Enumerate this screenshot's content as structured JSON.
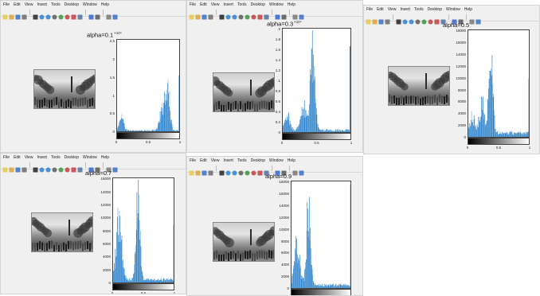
{
  "menu": [
    "File",
    "Edit",
    "View",
    "Insert",
    "Tools",
    "Desktop",
    "Window",
    "Help"
  ],
  "toolbar_icons": [
    "new-file-icon",
    "open-folder-icon",
    "save-icon",
    "print-icon",
    "pointer-icon",
    "zoom-in-icon",
    "zoom-out-icon",
    "pan-icon",
    "rotate-icon",
    "data-cursor-icon",
    "brush-icon",
    "link-icon",
    "colorbar-icon",
    "legend-icon",
    "grid-icon",
    "property-icon"
  ],
  "windows": [
    {
      "title": "alpha=0.1",
      "exponent": "×10⁴",
      "yticks": [
        "0",
        "0.5",
        "1",
        "1.5",
        "2",
        "2.5"
      ],
      "xticks": [
        "0",
        "0.5",
        "1"
      ]
    },
    {
      "title": "alpha=0.3",
      "exponent": "×10⁴",
      "yticks": [
        "0",
        "0.2",
        "0.4",
        "0.6",
        "0.8",
        "1",
        "1.2",
        "1.4",
        "1.6",
        "1.8",
        "2"
      ],
      "xticks": [
        "0",
        "0.5",
        "1"
      ]
    },
    {
      "title": "alpha=0.5",
      "exponent": "",
      "yticks": [
        "0",
        "2000",
        "4000",
        "6000",
        "8000",
        "10000",
        "12000",
        "14000",
        "16000",
        "18000"
      ],
      "xticks": [
        "0",
        "0.5",
        "1"
      ]
    },
    {
      "title": "alpha=0.7",
      "exponent": "",
      "yticks": [
        "0",
        "2000",
        "4000",
        "6000",
        "8000",
        "10000",
        "12000",
        "14000",
        "16000"
      ],
      "xticks": [
        "0",
        "0.5",
        "1"
      ]
    },
    {
      "title": "alpha=0.9",
      "exponent": "",
      "yticks": [
        "0",
        "2000",
        "4000",
        "6000",
        "8000",
        "10000",
        "12000",
        "14000",
        "16000",
        "18000"
      ],
      "xticks": [
        "0",
        "0.5",
        "1"
      ]
    }
  ],
  "colors": {
    "bar": "#1f77c4",
    "bar_light": "#6fb0e3",
    "window_bg": "#f0f0f0"
  }
}
